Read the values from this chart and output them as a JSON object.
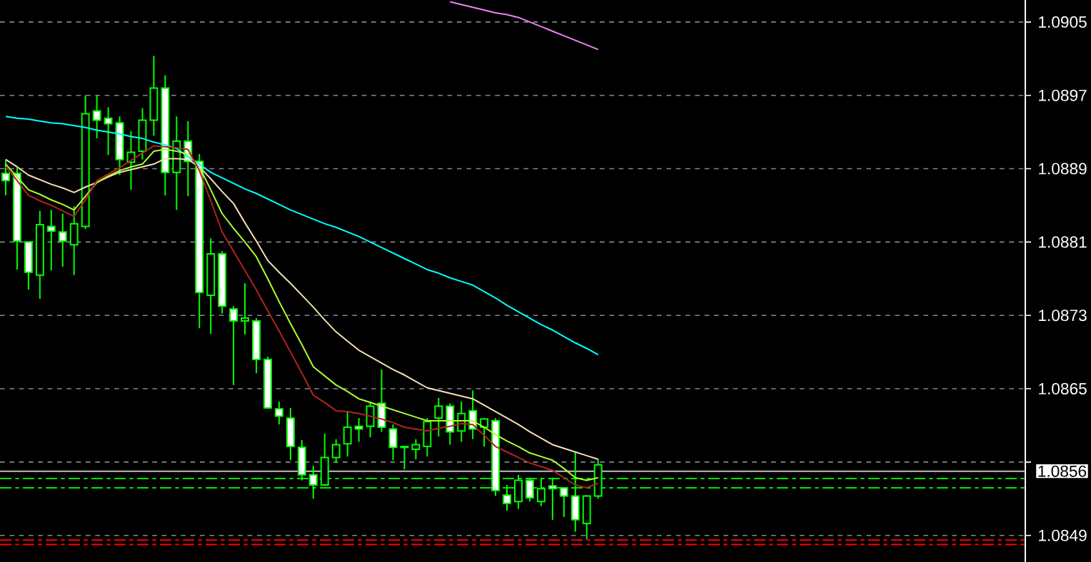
{
  "chart_data": {
    "type": "candlestick",
    "color": "#00ff00",
    "categories": [
      null,
      null,
      null,
      null,
      null,
      null,
      null,
      null,
      null,
      null,
      null,
      null,
      null,
      null,
      null,
      null,
      null,
      null,
      null,
      null,
      null,
      null,
      null,
      null,
      null,
      null,
      null,
      null,
      null,
      null,
      null,
      null,
      null,
      null,
      null,
      null,
      null,
      null,
      null,
      null,
      null,
      null,
      null,
      null,
      null,
      null,
      null,
      null,
      null,
      null,
      null,
      null,
      null,
      null,
      null,
      null,
      null,
      null,
      null,
      null,
      null,
      null,
      null,
      null,
      null,
      null,
      null,
      null,
      null,
      null,
      null,
      null,
      null,
      null,
      null,
      null,
      null,
      null,
      null,
      null,
      null,
      null,
      null,
      null,
      null,
      null,
      null,
      null,
      null,
      null
    ],
    "ohlc": [
      [
        1.08885,
        1.089,
        1.08861,
        1.08877
      ],
      [
        1.08885,
        1.08891,
        1.0878,
        1.08811
      ],
      [
        1.0881,
        1.0881,
        1.08758,
        1.08777
      ],
      [
        1.08774,
        1.08844,
        1.08748,
        1.08829
      ],
      [
        1.08827,
        1.08845,
        1.08779,
        1.08822
      ],
      [
        1.08821,
        1.08841,
        1.08783,
        1.08811
      ],
      [
        1.08807,
        1.08849,
        1.08774,
        1.0883
      ],
      [
        1.08827,
        1.0897,
        1.08824,
        1.0895
      ],
      [
        1.08953,
        1.0897,
        1.08923,
        1.08943
      ],
      [
        1.08945,
        1.08957,
        1.08905,
        1.08939
      ],
      [
        1.0894,
        1.08947,
        1.08883,
        1.089
      ],
      [
        1.08897,
        1.08931,
        1.08867,
        1.08908
      ],
      [
        1.08909,
        1.08956,
        1.089,
        1.08943
      ],
      [
        1.08943,
        1.09013,
        1.08926,
        1.08978
      ],
      [
        1.08978,
        1.08992,
        1.08861,
        1.08886
      ],
      [
        1.08886,
        1.08947,
        1.08845,
        1.0892
      ],
      [
        1.0892,
        1.08942,
        1.0886,
        1.08898
      ],
      [
        1.08898,
        1.08906,
        1.08716,
        1.08755
      ],
      [
        1.08752,
        1.08814,
        1.0871,
        1.08797
      ],
      [
        1.08797,
        1.088,
        1.08732,
        1.0874
      ],
      [
        1.08737,
        1.0874,
        1.08654,
        1.08724
      ],
      [
        1.08724,
        1.08765,
        1.08709,
        1.08727
      ],
      [
        1.08724,
        1.08727,
        1.08667,
        1.08682
      ],
      [
        1.08682,
        1.08685,
        1.08628,
        1.08629
      ],
      [
        1.08628,
        1.08636,
        1.08611,
        1.0862
      ],
      [
        1.08618,
        1.08629,
        1.08572,
        1.08587
      ],
      [
        1.08586,
        1.08594,
        1.0855,
        1.08556
      ],
      [
        1.08556,
        1.08566,
        1.0853,
        1.08545
      ],
      [
        1.08545,
        1.08601,
        1.08544,
        1.08575
      ],
      [
        1.08575,
        1.08595,
        1.08569,
        1.08589
      ],
      [
        1.0859,
        1.08626,
        1.08576,
        1.08608
      ],
      [
        1.08609,
        1.08618,
        1.08592,
        1.08606
      ],
      [
        1.08609,
        1.08636,
        1.08597,
        1.08631
      ],
      [
        1.08634,
        1.08671,
        1.08603,
        1.08608
      ],
      [
        1.08606,
        1.08611,
        1.08572,
        1.08586
      ],
      [
        1.08587,
        1.08587,
        1.08562,
        1.08586
      ],
      [
        1.08584,
        1.08595,
        1.08573,
        1.08589
      ],
      [
        1.08587,
        1.08618,
        1.08576,
        1.08614
      ],
      [
        1.08618,
        1.0864,
        1.08598,
        1.08631
      ],
      [
        1.08631,
        1.08634,
        1.08589,
        1.08603
      ],
      [
        1.08604,
        1.08636,
        1.08592,
        1.08623
      ],
      [
        1.08626,
        1.08648,
        1.08595,
        1.08606
      ],
      [
        1.08608,
        1.08618,
        1.08587,
        1.08617
      ],
      [
        1.08615,
        1.08618,
        1.08533,
        1.08539
      ],
      [
        1.08534,
        1.08545,
        1.08517,
        1.08525
      ],
      [
        1.08527,
        1.08556,
        1.08519,
        1.0855
      ],
      [
        1.0855,
        1.08553,
        1.08527,
        1.08531
      ],
      [
        1.08527,
        1.08553,
        1.08522,
        1.08541
      ],
      [
        1.08544,
        1.08553,
        1.08507,
        1.08541
      ],
      [
        1.08542,
        1.08542,
        1.0851,
        1.08533
      ],
      [
        1.08533,
        1.08581,
        1.08494,
        1.08507
      ],
      [
        1.08503,
        1.08534,
        1.08486,
        1.08533
      ],
      [
        1.08533,
        1.08573,
        1.0853,
        1.08567
      ],
      null,
      null,
      null,
      null,
      null,
      null,
      null,
      null,
      null,
      null,
      null,
      null,
      null,
      null,
      null,
      null,
      null,
      null,
      null,
      null,
      null,
      null,
      null,
      null,
      null,
      null,
      null,
      null,
      null,
      null,
      null,
      null,
      null,
      null,
      null,
      null,
      null
    ],
    "series": [
      {
        "type": "line",
        "color": "#00ffff",
        "values": [
          1.08947,
          1.08945,
          1.08944,
          1.08942,
          1.0894,
          1.08939,
          1.08937,
          1.08935,
          1.08932,
          1.0893,
          1.08928,
          1.08925,
          1.08923,
          1.08919,
          1.08916,
          1.08912,
          1.08903,
          1.08895,
          1.08886,
          1.0888,
          1.08874,
          1.08868,
          1.08863,
          1.08857,
          1.08851,
          1.08845,
          1.0884,
          1.08835,
          1.0883,
          1.08826,
          1.08821,
          1.08816,
          1.0881,
          1.08804,
          1.08798,
          1.08792,
          1.08786,
          1.0878,
          1.08776,
          1.08771,
          1.08767,
          1.08763,
          1.08756,
          1.08749,
          1.08741,
          1.08734,
          1.08727,
          1.0872,
          1.08714,
          1.08707,
          1.087,
          1.08694,
          1.08687,
          null,
          null,
          null,
          null,
          null,
          null,
          null,
          null,
          null,
          null,
          null,
          null,
          null,
          null,
          null,
          null,
          null,
          null,
          null,
          null,
          null,
          null,
          null,
          null,
          null,
          null,
          null,
          null,
          null,
          null,
          null,
          null,
          null,
          null,
          null,
          null,
          null
        ]
      },
      {
        "type": "line",
        "color": "#ee82ee",
        "values": [
          null,
          null,
          null,
          null,
          null,
          null,
          null,
          null,
          null,
          null,
          null,
          null,
          null,
          null,
          null,
          null,
          null,
          null,
          null,
          null,
          null,
          null,
          null,
          null,
          null,
          null,
          null,
          null,
          null,
          null,
          null,
          null,
          null,
          null,
          null,
          null,
          null,
          null,
          null,
          1.09072,
          1.09069,
          1.09066,
          1.09063,
          1.0906,
          1.09058,
          1.09055,
          1.0905,
          1.09045,
          1.0904,
          1.09035,
          1.0903,
          1.09025,
          1.0902,
          null,
          null,
          null,
          null,
          null,
          null,
          null,
          null,
          null,
          null,
          null,
          null,
          null,
          null,
          null,
          null,
          null,
          null,
          null,
          null,
          null,
          null,
          null,
          null,
          null,
          null,
          null,
          null,
          null,
          null,
          null,
          null,
          null,
          null,
          null,
          null,
          null
        ]
      },
      {
        "type": "line",
        "color": "#f5deb3",
        "values": [
          1.089,
          1.08892,
          1.08883,
          1.08878,
          1.08873,
          1.08869,
          1.08864,
          1.0887,
          1.08875,
          1.08881,
          1.08886,
          1.08889,
          1.08892,
          1.08895,
          1.08901,
          1.08901,
          1.089,
          1.08892,
          1.08879,
          1.08865,
          1.08852,
          1.08831,
          1.08811,
          1.0879,
          1.08777,
          1.08765,
          1.08752,
          1.08739,
          1.08725,
          1.08712,
          1.08702,
          1.08692,
          1.08685,
          1.08678,
          1.08671,
          1.08665,
          1.08658,
          1.08651,
          1.08648,
          1.08645,
          1.08642,
          1.08639,
          1.08632,
          1.08625,
          1.08618,
          1.08611,
          1.08603,
          1.08596,
          1.08589,
          1.08585,
          1.08581,
          1.08577,
          1.08573,
          null,
          null,
          null,
          null,
          null,
          null,
          null,
          null,
          null,
          null,
          null,
          null,
          null,
          null,
          null,
          null,
          null,
          null,
          null,
          null,
          null,
          null,
          null,
          null,
          null,
          null,
          null,
          null,
          null,
          null,
          null,
          null,
          null,
          null,
          null,
          null,
          null
        ]
      },
      {
        "type": "line",
        "color": "#adff2f",
        "values": [
          1.08895,
          1.08881,
          1.08867,
          1.08862,
          1.08856,
          1.08851,
          1.08845,
          1.0886,
          1.08875,
          1.08882,
          1.08888,
          1.08892,
          1.08895,
          1.08909,
          1.08911,
          1.08909,
          1.08906,
          1.08892,
          1.08867,
          1.08841,
          1.08825,
          1.0881,
          1.08794,
          1.0877,
          1.08745,
          1.08721,
          1.08698,
          1.08674,
          1.08664,
          1.08654,
          1.08647,
          1.08639,
          1.08635,
          1.08631,
          1.08627,
          1.08623,
          1.08619,
          1.08615,
          1.08615,
          1.08615,
          1.08615,
          1.08615,
          1.08608,
          1.086,
          1.08593,
          1.08587,
          1.0858,
          1.08576,
          1.08572,
          1.08563,
          1.08553,
          1.0855,
          1.08553,
          null,
          null,
          null,
          null,
          null,
          null,
          null,
          null,
          null,
          null,
          null,
          null,
          null,
          null,
          null,
          null,
          null,
          null,
          null,
          null,
          null,
          null,
          null,
          null,
          null,
          null,
          null,
          null,
          null,
          null,
          null,
          null,
          null,
          null,
          null,
          null,
          null
        ]
      },
      {
        "type": "line",
        "color": "#b22222",
        "values": [
          1.08892,
          1.08877,
          1.08861,
          1.08855,
          1.0885,
          1.08844,
          1.08838,
          1.08856,
          1.08877,
          1.08884,
          1.08891,
          1.08899,
          1.08907,
          1.08915,
          1.08914,
          1.08913,
          1.08911,
          1.08888,
          1.08855,
          1.08821,
          1.088,
          1.08779,
          1.08758,
          1.08735,
          1.08713,
          1.0869,
          1.08667,
          1.08643,
          1.08635,
          1.08626,
          1.08625,
          1.08623,
          1.0862,
          1.08617,
          1.08613,
          1.08608,
          1.08606,
          1.08604,
          1.08607,
          1.08609,
          1.08612,
          1.08611,
          1.08599,
          1.08587,
          1.08581,
          1.08575,
          1.08569,
          1.08565,
          1.08561,
          1.08553,
          1.08545,
          1.08542,
          1.08547,
          null,
          null,
          null,
          null,
          null,
          null,
          null,
          null,
          null,
          null,
          null,
          null,
          null,
          null,
          null,
          null,
          null,
          null,
          null,
          null,
          null,
          null,
          null,
          null,
          null,
          null,
          null,
          null,
          null,
          null,
          null,
          null,
          null,
          null,
          null,
          null,
          null
        ]
      }
    ],
    "ylim": [
      1.08461,
      1.09074
    ],
    "yticks": [
      1.0905,
      1.0897,
      1.0889,
      1.0881,
      1.0873,
      1.0865,
      {
        "value": 1.0857,
        "label": null
      },
      1.0849
    ],
    "grid": true,
    "tick_labels": "y",
    "ref_lines": [
      {
        "axis": "y",
        "value": 1.0856,
        "label": "1.0856",
        "color": "#c0c0c0",
        "line_style": "solid"
      },
      {
        "axis": "y",
        "value": 1.08552,
        "color": "#00e600",
        "line_style": "dashed"
      },
      {
        "axis": "y",
        "value": 1.08542,
        "color": "#00e600",
        "line_style": "dashed"
      },
      {
        "axis": "y",
        "value": 1.08485,
        "color": "#ff0000",
        "line_style": "dashed"
      },
      {
        "axis": "y",
        "value": 1.0848,
        "color": "#ff0000",
        "line_style": "dashed"
      }
    ]
  }
}
